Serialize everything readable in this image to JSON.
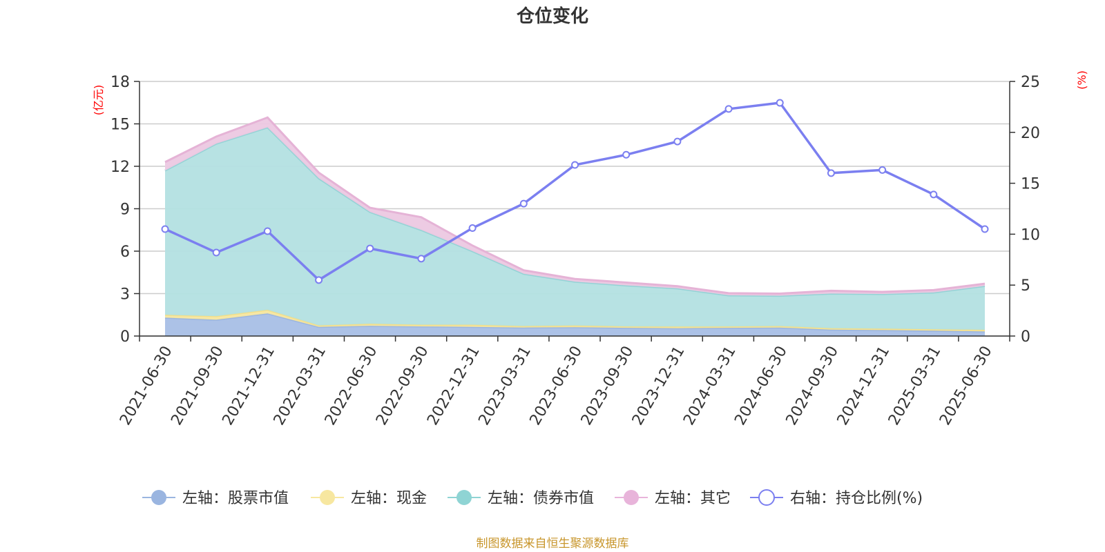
{
  "title": "仓位变化",
  "left_unit": "(亿元)",
  "right_unit": "(%)",
  "footer": "制图数据来自恒生聚源数据库",
  "legend": [
    {
      "label": "左轴：股票市值",
      "color": "#9ab5e0",
      "icon": "filled-circle-icon"
    },
    {
      "label": "左轴：现金",
      "color": "#f7e7a0",
      "icon": "filled-circle-icon"
    },
    {
      "label": "左轴：债券市值",
      "color": "#8fd4d4",
      "icon": "filled-circle-icon"
    },
    {
      "label": "左轴：其它",
      "color": "#e8b4da",
      "icon": "filled-circle-icon"
    },
    {
      "label": "右轴：持仓比例(%)",
      "color": "#7b7ff0",
      "icon": "hollow-circle-icon"
    }
  ],
  "chart_data": {
    "type": "area",
    "stacked": true,
    "categories": [
      "2021-06-30",
      "2021-09-30",
      "2021-12-31",
      "2022-03-31",
      "2022-06-30",
      "2022-09-30",
      "2022-12-31",
      "2023-03-31",
      "2023-06-30",
      "2023-09-30",
      "2023-12-31",
      "2024-03-31",
      "2024-06-30",
      "2024-09-30",
      "2024-12-31",
      "2025-03-31",
      "2025-06-30"
    ],
    "y_left": {
      "min": 0,
      "max": 18,
      "ticks": [
        0,
        3,
        6,
        9,
        12,
        15,
        18
      ],
      "unit": "(亿元)"
    },
    "y_right": {
      "min": 0,
      "max": 25,
      "ticks": [
        0,
        5,
        10,
        15,
        20,
        25
      ],
      "unit": "(%)"
    },
    "series": [
      {
        "name": "左轴：股票市值",
        "axis": "left",
        "color": "#a8bfe6",
        "line": "#9ab5e0",
        "values": [
          1.3,
          1.15,
          1.6,
          0.65,
          0.72,
          0.68,
          0.65,
          0.6,
          0.62,
          0.58,
          0.55,
          0.58,
          0.6,
          0.45,
          0.42,
          0.38,
          0.32
        ]
      },
      {
        "name": "左轴：现金",
        "axis": "left",
        "color": "#f7e7a0",
        "line": "#f3df8a",
        "values": [
          0.2,
          0.25,
          0.25,
          0.1,
          0.15,
          0.12,
          0.15,
          0.1,
          0.12,
          0.1,
          0.12,
          0.1,
          0.1,
          0.1,
          0.1,
          0.1,
          0.12
        ]
      },
      {
        "name": "左轴：债券市值",
        "axis": "left",
        "color": "#b3e0e2",
        "line": "#94d3d6",
        "values": [
          10.2,
          12.2,
          12.9,
          10.4,
          7.9,
          6.7,
          5.2,
          3.7,
          3.1,
          2.9,
          2.7,
          2.2,
          2.15,
          2.45,
          2.45,
          2.6,
          3.1
        ]
      },
      {
        "name": "左轴：其它",
        "axis": "left",
        "color": "#ecc8e2",
        "line": "#e5b3d6",
        "values": [
          0.6,
          0.5,
          0.7,
          0.4,
          0.3,
          0.9,
          0.4,
          0.25,
          0.2,
          0.2,
          0.15,
          0.15,
          0.15,
          0.2,
          0.15,
          0.17,
          0.16
        ]
      },
      {
        "name": "右轴：持仓比例(%)",
        "axis": "right",
        "type": "line",
        "color": "#7b7ff0",
        "values": [
          10.5,
          8.2,
          10.3,
          5.5,
          8.6,
          7.6,
          10.6,
          13.0,
          16.8,
          17.8,
          19.1,
          22.3,
          22.9,
          16.0,
          16.3,
          13.9,
          10.5
        ]
      }
    ],
    "grid": true,
    "legend_position": "bottom"
  }
}
